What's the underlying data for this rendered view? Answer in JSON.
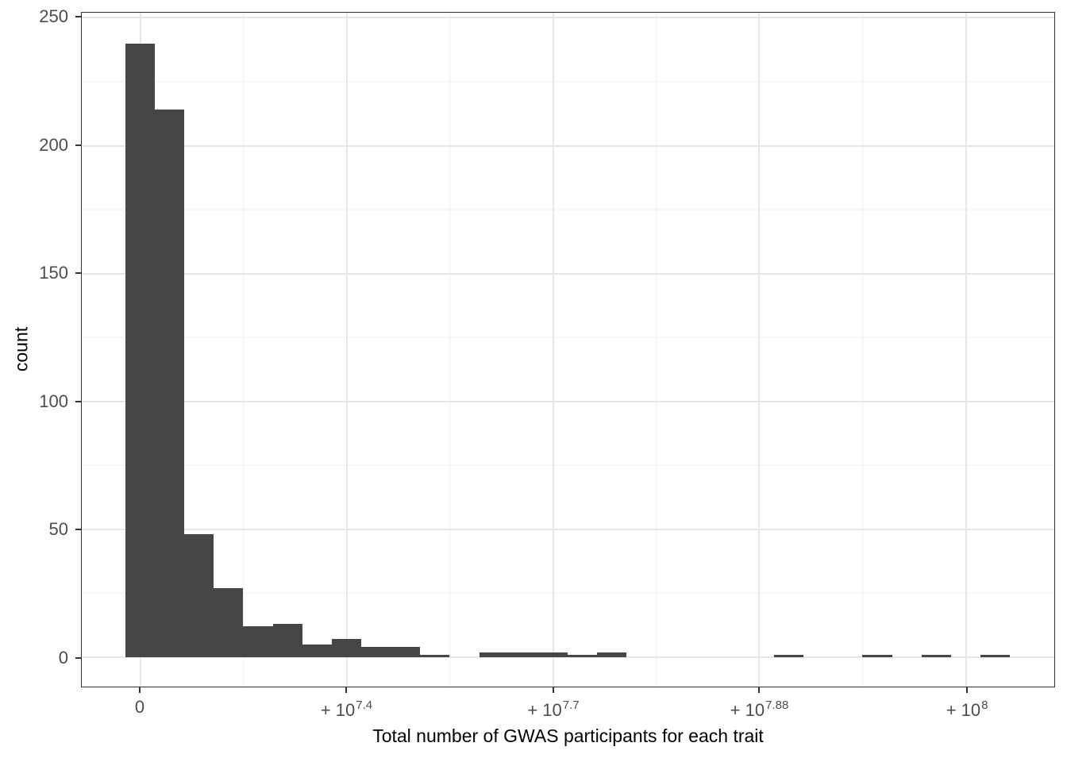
{
  "chart_data": {
    "type": "bar",
    "subtype": "histogram",
    "title": "",
    "xlabel": "Total number of GWAS participants for each trait",
    "ylabel": "count",
    "x_axis": {
      "scale": "pseudo-log",
      "ticks": [
        {
          "base": "0",
          "sup": "",
          "frac": 0.0603
        },
        {
          "base": "+ 10",
          "sup": "7.4",
          "frac": 0.2726
        },
        {
          "base": "+ 10",
          "sup": "7.7",
          "frac": 0.4849
        },
        {
          "base": "+ 10",
          "sup": "7.88",
          "frac": 0.6964
        },
        {
          "base": "+ 10",
          "sup": "8",
          "frac": 0.9096
        }
      ],
      "minor_fracs": [
        0.1667,
        0.379,
        0.5913,
        0.8032
      ]
    },
    "y_axis": {
      "ticks": [
        0,
        50,
        100,
        150,
        200,
        250
      ],
      "minor": [
        25,
        75,
        125,
        175,
        225
      ],
      "lim": [
        -11.5,
        252
      ]
    },
    "bins": {
      "first_left_frac": 0.04482,
      "width_frac": 0.03032,
      "values": [
        240,
        214,
        48,
        27,
        12,
        13,
        5,
        7,
        4,
        4,
        1,
        0,
        2,
        2,
        2,
        1,
        2,
        0,
        0,
        0,
        0,
        0,
        1,
        0,
        0,
        1,
        0,
        1,
        0,
        1
      ]
    },
    "style": {
      "bar_fill": "#464646",
      "panel_border": "#333333",
      "grid_major": "#e7e7e7",
      "grid_minor": "#efefef",
      "tick_color": "#333333",
      "tick_label_color": "#4d4d4d",
      "title_color": "#000000",
      "background": "#ffffff"
    }
  }
}
